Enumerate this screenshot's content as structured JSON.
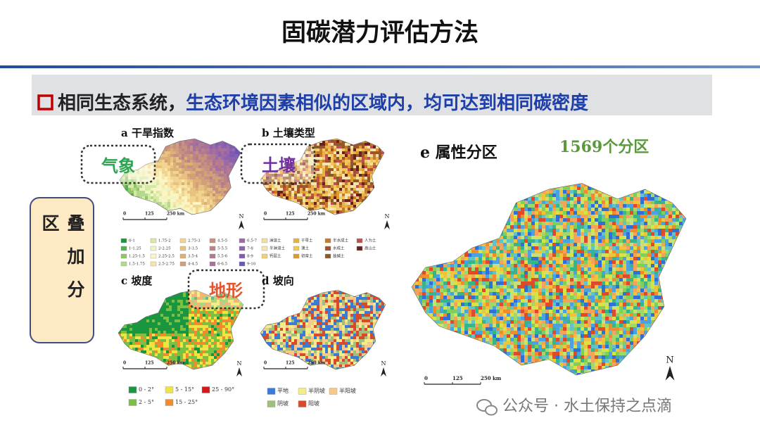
{
  "header": {
    "title": "固碳潜力评估方法"
  },
  "banner": {
    "lead": "相同生态系统，",
    "text": "生态环境因素相似的区域内，均可达到相同碳密度"
  },
  "overlay_box": {
    "label": "叠加分区"
  },
  "callouts": [
    "气象",
    "土壤",
    "地形"
  ],
  "zone_count": "1569个分区",
  "panels": [
    {
      "label": "a 干旱指数",
      "scale": [
        "0",
        "125",
        "250 km"
      ],
      "north": "N",
      "legend": [
        {
          "label": "0-1",
          "color": "#1a9641"
        },
        {
          "label": "1-1.25",
          "color": "#52b151"
        },
        {
          "label": "1.25-1.5",
          "color": "#8cc963"
        },
        {
          "label": "1.5-1.75",
          "color": "#b5d98a"
        },
        {
          "label": "1.75-2",
          "color": "#d7e9a6"
        },
        {
          "label": "2-2.25",
          "color": "#eef5c0"
        },
        {
          "label": "2.25-2.5",
          "color": "#fbf5c4"
        },
        {
          "label": "2.5-2.75",
          "color": "#f7e6a8"
        },
        {
          "label": "2.75-3",
          "color": "#f1d48f"
        },
        {
          "label": "3-3.5",
          "color": "#e8c27f"
        },
        {
          "label": "3.5-4",
          "color": "#dcb074"
        },
        {
          "label": "4-4.5",
          "color": "#cfa07a"
        },
        {
          "label": "4.5-5",
          "color": "#c6917f"
        },
        {
          "label": "5-5.5",
          "color": "#bb8384"
        },
        {
          "label": "5.5-6",
          "color": "#b27a8f"
        },
        {
          "label": "6-6.5",
          "color": "#a8719b"
        },
        {
          "label": "6.5-7",
          "color": "#9c6aa6"
        },
        {
          "label": "7-8",
          "color": "#8e63ae"
        },
        {
          "label": "8-9",
          "color": "#7f5cb4"
        },
        {
          "label": "9-10",
          "color": "#6d55b8"
        }
      ]
    },
    {
      "label": "b 土壤类型",
      "scale": [
        "0",
        "125",
        "250 km"
      ],
      "north": "N",
      "legend": [
        {
          "label": "淋溶土",
          "color": "#f2e0a0"
        },
        {
          "label": "半淋溶土",
          "color": "#f5e6b0"
        },
        {
          "label": "钙层土",
          "color": "#f0d070"
        },
        {
          "label": "干旱土",
          "color": "#e8b048"
        },
        {
          "label": "漠土",
          "color": "#f3c65a"
        },
        {
          "label": "初育土",
          "color": "#e29a2c"
        },
        {
          "label": "半水成土",
          "color": "#c8782a"
        },
        {
          "label": "水成土",
          "color": "#a0522d"
        },
        {
          "label": "盐碱土",
          "color": "#8b5a2b"
        },
        {
          "label": "人为土",
          "color": "#c0504d"
        },
        {
          "label": "高山土",
          "color": "#6b2020"
        }
      ]
    },
    {
      "label": "c 坡度",
      "scale": [
        "0",
        "125",
        "250 km"
      ],
      "north": "N",
      "legend": [
        {
          "label": "0 - 2°",
          "color": "#1a9641"
        },
        {
          "label": "2 - 5°",
          "color": "#7bc043"
        },
        {
          "label": "5 - 15°",
          "color": "#f0e442"
        },
        {
          "label": "15 - 25°",
          "color": "#f08c2e"
        },
        {
          "label": "25 - 90°",
          "color": "#d7191c"
        }
      ]
    },
    {
      "label": "d 坡向",
      "scale": [
        "0",
        "125",
        "250 km"
      ],
      "north": "N",
      "legend": [
        {
          "label": "平地",
          "color": "#3a7bd5"
        },
        {
          "label": "阴坡",
          "color": "#9fbf7b"
        },
        {
          "label": "半阴坡",
          "color": "#f2ec8a"
        },
        {
          "label": "阳坡",
          "color": "#d94a2a"
        },
        {
          "label": "半阳坡",
          "color": "#f5c98a"
        }
      ]
    },
    {
      "label": "e 属性分区",
      "scale": [
        "0",
        "125",
        "250 km"
      ],
      "north": "N",
      "legend": []
    }
  ],
  "watermark": "公众号 · 水土保持之点滴"
}
